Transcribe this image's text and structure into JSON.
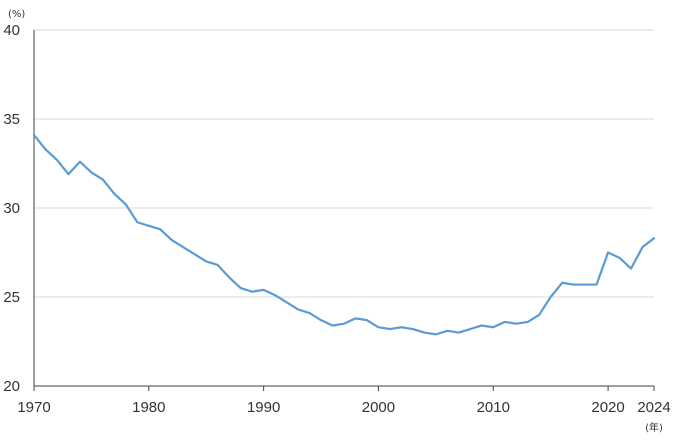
{
  "chart_data": {
    "type": "line",
    "title": "",
    "xlabel": "",
    "ylabel": "",
    "y_unit": "(%)",
    "x_unit": "(年)",
    "xlim": [
      1970,
      2024
    ],
    "ylim": [
      20,
      40
    ],
    "x_ticks": [
      1970,
      1980,
      1990,
      2000,
      2010,
      2020,
      2024
    ],
    "y_ticks": [
      20,
      25,
      30,
      35,
      40
    ],
    "grid": "horizontal",
    "legend": "none",
    "line_color": "#5B9BD5",
    "grid_color": "#D9D9D9",
    "axis_color": "#404040",
    "series": [
      {
        "x": [
          1970,
          1971,
          1972,
          1973,
          1974,
          1975,
          1976,
          1977,
          1978,
          1979,
          1980,
          1981,
          1982,
          1983,
          1984,
          1985,
          1986,
          1987,
          1988,
          1989,
          1990,
          1991,
          1992,
          1993,
          1994,
          1995,
          1996,
          1997,
          1998,
          1999,
          2000,
          2001,
          2002,
          2003,
          2004,
          2005,
          2006,
          2007,
          2008,
          2009,
          2010,
          2011,
          2012,
          2013,
          2014,
          2015,
          2016,
          2017,
          2018,
          2019,
          2020,
          2021,
          2022,
          2023,
          2024
        ],
        "values": [
          34.1,
          33.3,
          32.7,
          31.9,
          32.6,
          32.0,
          31.6,
          30.8,
          30.2,
          29.2,
          29.0,
          28.8,
          28.2,
          27.8,
          27.4,
          27.0,
          26.8,
          26.1,
          25.5,
          25.3,
          25.4,
          25.1,
          24.7,
          24.3,
          24.1,
          23.7,
          23.4,
          23.5,
          23.8,
          23.7,
          23.3,
          23.2,
          23.3,
          23.2,
          23.0,
          22.9,
          23.1,
          23.0,
          23.2,
          23.4,
          23.3,
          23.6,
          23.5,
          23.6,
          24.0,
          25.0,
          25.8,
          25.7,
          25.7,
          25.7,
          27.5,
          27.2,
          26.6,
          27.8,
          28.3
        ]
      }
    ]
  }
}
